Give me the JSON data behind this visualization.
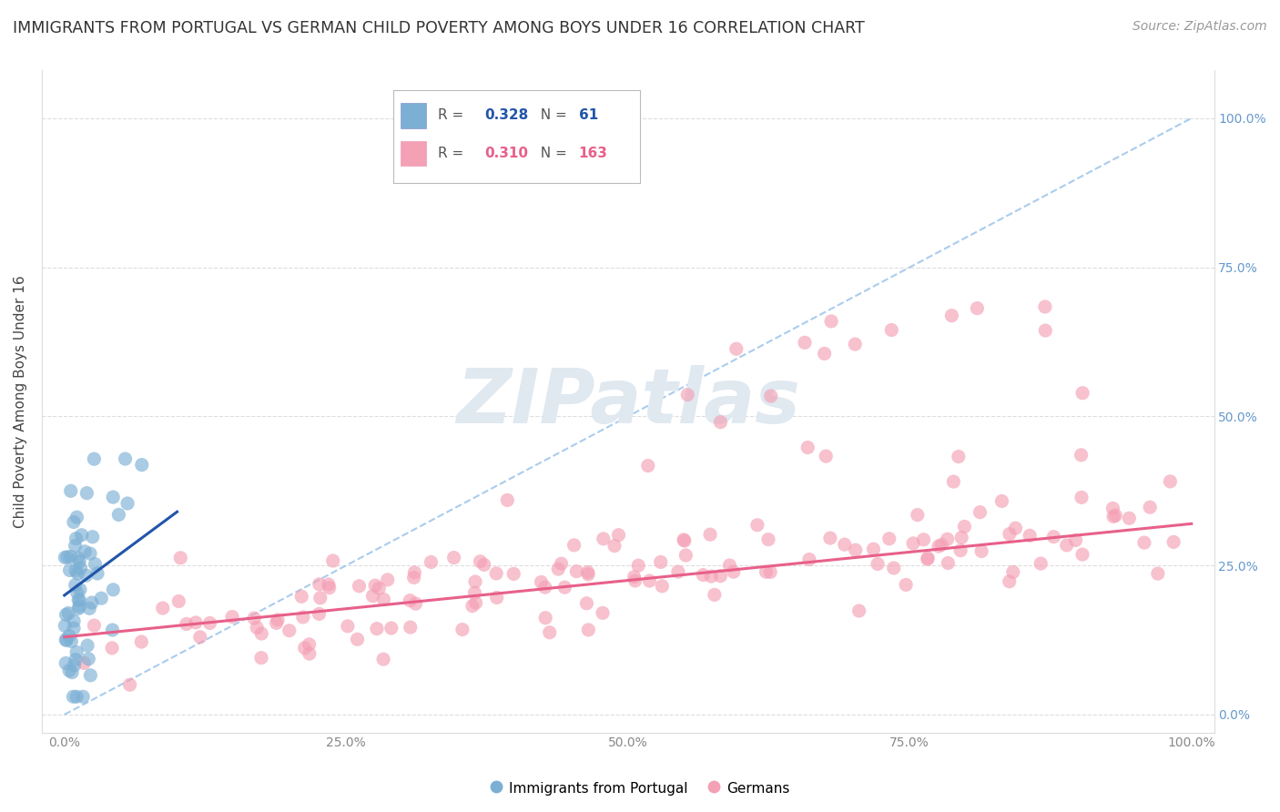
{
  "title": "IMMIGRANTS FROM PORTUGAL VS GERMAN CHILD POVERTY AMONG BOYS UNDER 16 CORRELATION CHART",
  "source": "Source: ZipAtlas.com",
  "ylabel": "Child Poverty Among Boys Under 16",
  "watermark": "ZIPatlas",
  "legend_labels_bottom": [
    "Immigrants from Portugal",
    "Germans"
  ],
  "blue_color": "#7bafd4",
  "pink_color": "#f4a0b5",
  "blue_line_color": "#2255aa",
  "pink_line_color": "#e8608a",
  "dashed_line_color": "#aaccee",
  "background_color": "#ffffff",
  "title_fontsize": 12.5,
  "axis_label_fontsize": 11,
  "tick_label_fontsize": 10,
  "source_fontsize": 10,
  "watermark_fontsize": 60,
  "xlim": [
    -2,
    102
  ],
  "ylim": [
    -3,
    108
  ],
  "xticks": [
    0,
    25,
    50,
    75,
    100
  ],
  "yticks": [
    0,
    25,
    50,
    75,
    100
  ],
  "blue_trend_x0": 0.0,
  "blue_trend_y0": 20.0,
  "blue_trend_x1": 10.0,
  "blue_trend_y1": 34.0,
  "pink_trend_x0": 0.0,
  "pink_trend_y0": 13.0,
  "pink_trend_x1": 100.0,
  "pink_trend_y1": 32.0,
  "grey_trend_x0": 0.0,
  "grey_trend_y0": 0.0,
  "grey_trend_x1": 100.0,
  "grey_trend_y1": 100.0,
  "legend_R_blue": "0.328",
  "legend_N_blue": "61",
  "legend_R_pink": "0.310",
  "legend_N_pink": "163"
}
